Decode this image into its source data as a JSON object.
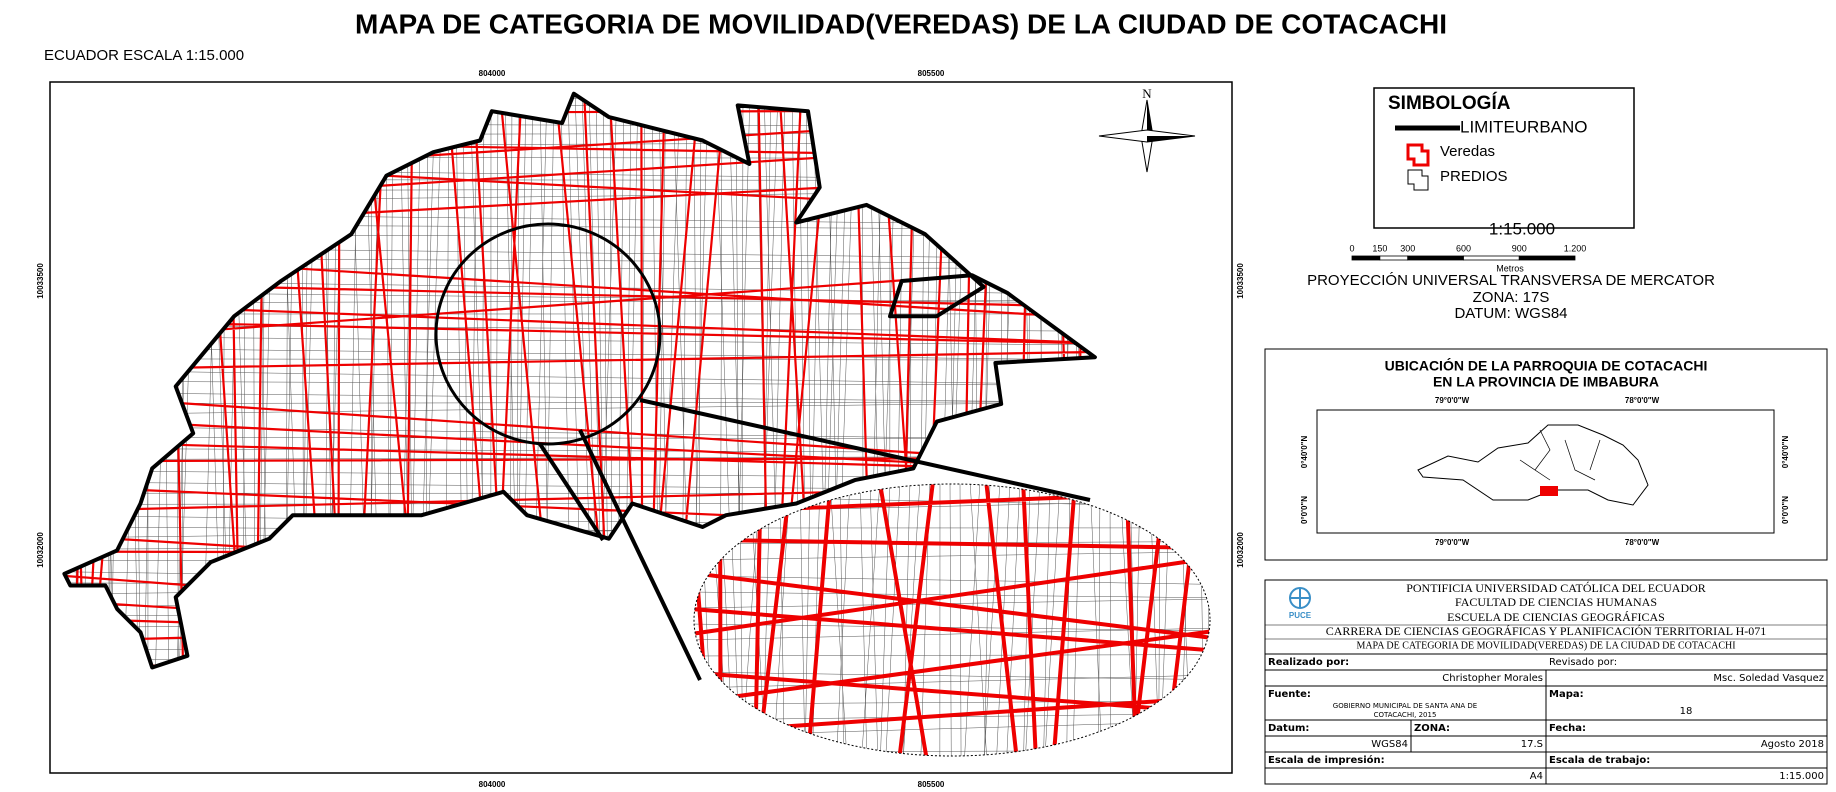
{
  "header": {
    "title": "MAPA DE CATEGORIA DE MOVILIDAD(VEREDAS) DE LA CIUDAD DE COTACACHI",
    "subtitle": "ECUADOR ESCALA 1:15.000"
  },
  "map": {
    "top_ticks": [
      "804000",
      "805500"
    ],
    "bottom_ticks": [
      "804000",
      "805500"
    ],
    "left_ticks": [
      "10033500",
      "10032000"
    ],
    "right_ticks": [
      "10033500",
      "10032000"
    ],
    "north": "N"
  },
  "legend": {
    "title": "SIMBOLOGÍA",
    "items": [
      "LIMITEURBANO",
      "Veredas",
      "PREDIOS"
    ]
  },
  "scale": {
    "ratio": "1:15.000",
    "labels": [
      "0",
      "150",
      "300",
      "600",
      "900",
      "1.200"
    ],
    "unit": "Metros",
    "projection": "PROYECCIÓN UNIVERSAL TRANSVERSA DE MERCATOR",
    "zone": "ZONA: 17S",
    "datum": "DATUM: WGS84"
  },
  "locator": {
    "title_lines": [
      "UBICACIÓN DE LA PARROQUIA DE COTACACHI",
      "EN LA PROVINCIA DE IMBABURA"
    ],
    "top_ticks": [
      "79°0'0\"W",
      "78°0'0\"W"
    ],
    "bottom_ticks": [
      "79°0'0\"W",
      "78°0'0\"W"
    ],
    "left_ticks": [
      "0°40'0\"N",
      "0°0'0\"N"
    ],
    "right_ticks": [
      "0°40'0\"N",
      "0°0'0\"N"
    ]
  },
  "title_block": {
    "logo": "PUCE",
    "lines": [
      "PONTIFICIA UNIVERSIDAD CATÓLICA DEL ECUADOR",
      "FACULTAD DE CIENCIAS HUMANAS",
      "ESCUELA DE CIENCIAS GEOGRÁFICAS",
      "CARRERA DE CIENCIAS GEOGRÁFICAS Y PLANIFICACIÓN TERRITORIAL H-071",
      "MAPA DE CATEGORIA DE MOVILIDAD(VEREDAS) DE LA CIUDAD DE COTACACHI"
    ],
    "fields": {
      "made_by": {
        "label": "Realizado por:",
        "value": "Christopher Morales"
      },
      "reviewed_by": {
        "label": "Revisado por:",
        "value": "Msc. Soledad Vasquez"
      },
      "source": {
        "label": "Fuente:",
        "value": "GOBIERNO MUNICIPAL DE SANTA ANA DE",
        "value2": "COTACACHI, 2015"
      },
      "map_no": {
        "label": "Mapa:",
        "value": "18"
      },
      "datum": {
        "label": "Datum:",
        "value": "WGS84"
      },
      "zone": {
        "label": "ZONA:",
        "value": "17.S"
      },
      "date": {
        "label": "Fecha:",
        "value": "Agosto 2018"
      },
      "print_scale": {
        "label": "Escala de impresión:",
        "value": "A4"
      },
      "work_scale": {
        "label": "Escala de trabajo:",
        "value": "1:15.000"
      }
    }
  }
}
